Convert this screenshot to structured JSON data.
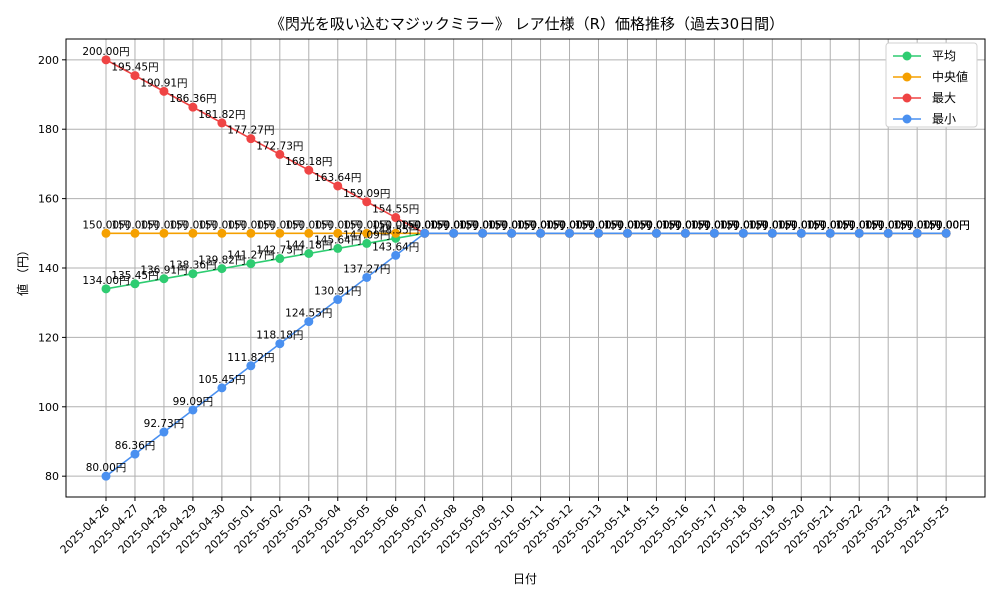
{
  "chart_data": {
    "type": "line",
    "title": "《閃光を吸い込むマジックミラー》 レア仕様（R）価格推移（過去30日間）",
    "xlabel": "日付",
    "ylabel": "値 （円）",
    "ylim": [
      74,
      206
    ],
    "yticks": [
      80,
      100,
      120,
      140,
      160,
      180,
      200
    ],
    "ytick_labels": [
      "80",
      "100",
      "120",
      "140",
      "160",
      "180",
      "200"
    ],
    "grid": true,
    "legend_position": "top-right",
    "label_suffix": "円",
    "categories": [
      "2025-04-26",
      "2025-04-27",
      "2025-04-28",
      "2025-04-29",
      "2025-04-30",
      "2025-05-01",
      "2025-05-02",
      "2025-05-03",
      "2025-05-04",
      "2025-05-05",
      "2025-05-06",
      "2025-05-07",
      "2025-05-08",
      "2025-05-09",
      "2025-05-10",
      "2025-05-11",
      "2025-05-12",
      "2025-05-13",
      "2025-05-14",
      "2025-05-15",
      "2025-05-16",
      "2025-05-17",
      "2025-05-18",
      "2025-05-19",
      "2025-05-20",
      "2025-05-21",
      "2025-05-22",
      "2025-05-23",
      "2025-05-24",
      "2025-05-25"
    ],
    "series": [
      {
        "name": "平均",
        "key": "avg",
        "color": "#2ecc71",
        "values": [
          134.0,
          135.45,
          136.91,
          138.36,
          139.82,
          141.27,
          142.73,
          144.18,
          145.64,
          147.09,
          148.55,
          150,
          150,
          150,
          150,
          150,
          150,
          150,
          150,
          150,
          150,
          150,
          150,
          150,
          150,
          150,
          150,
          150,
          150,
          150
        ],
        "labels": [
          "134.00円",
          "135.45円",
          "136.91円",
          "138.36円",
          "139.82円",
          "141.27円",
          "142.73円",
          "144.18円",
          "145.64円",
          "147.09円",
          "148.55円",
          "150.00円",
          "150.00円",
          "150.00円",
          "150.00円",
          "150.00円",
          "150.00円",
          "150.00円",
          "150.00円",
          "150.00円",
          "150.00円",
          "150.00円",
          "150.00円",
          "150.00円",
          "150.00円",
          "150.00円",
          "150.00円",
          "150.00円",
          "150.00円",
          "150.00円"
        ]
      },
      {
        "name": "中央値",
        "key": "median",
        "color": "#f5a000",
        "values": [
          150,
          150,
          150,
          150,
          150,
          150,
          150,
          150,
          150,
          150,
          150,
          150,
          150,
          150,
          150,
          150,
          150,
          150,
          150,
          150,
          150,
          150,
          150,
          150,
          150,
          150,
          150,
          150,
          150,
          150
        ],
        "labels": [
          "150.00円",
          "150.00円",
          "150.00円",
          "150.00円",
          "150.00円",
          "150.00円",
          "150.00円",
          "150.00円",
          "150.00円",
          "150.00円",
          "150.00円",
          "150.00円",
          "150.00円",
          "150.00円",
          "150.00円",
          "150.00円",
          "150.00円",
          "150.00円",
          "150.00円",
          "150.00円",
          "150.00円",
          "150.00円",
          "150.00円",
          "150.00円",
          "150.00円",
          "150.00円",
          "150.00円",
          "150.00円",
          "150.00円",
          "150.00円"
        ]
      },
      {
        "name": "最大",
        "key": "max",
        "color": "#ef4444",
        "values": [
          200.0,
          195.45,
          190.91,
          186.36,
          181.82,
          177.27,
          172.73,
          168.18,
          163.64,
          159.09,
          154.55,
          150,
          150,
          150,
          150,
          150,
          150,
          150,
          150,
          150,
          150,
          150,
          150,
          150,
          150,
          150,
          150,
          150,
          150,
          150
        ],
        "labels": [
          "200.00円",
          "195.45円",
          "190.91円",
          "186.36円",
          "181.82円",
          "177.27円",
          "172.73円",
          "168.18円",
          "163.64円",
          "159.09円",
          "154.55円",
          "150.00円",
          "150.00円",
          "150.00円",
          "150.00円",
          "150.00円",
          "150.00円",
          "150.00円",
          "150.00円",
          "150.00円",
          "150.00円",
          "150.00円",
          "150.00円",
          "150.00円",
          "150.00円",
          "150.00円",
          "150.00円",
          "150.00円",
          "150.00円",
          "150.00円"
        ]
      },
      {
        "name": "最小",
        "key": "min",
        "color": "#4a90f0",
        "values": [
          80.0,
          86.36,
          92.73,
          99.09,
          105.45,
          111.82,
          118.18,
          124.55,
          130.91,
          137.27,
          143.64,
          150,
          150,
          150,
          150,
          150,
          150,
          150,
          150,
          150,
          150,
          150,
          150,
          150,
          150,
          150,
          150,
          150,
          150,
          150
        ],
        "labels": [
          "80.00円",
          "86.36円",
          "92.73円",
          "99.09円",
          "105.45円",
          "111.82円",
          "118.18円",
          "124.55円",
          "130.91円",
          "137.27円",
          "143.64円",
          "150.00円",
          "150.00円",
          "150.00円",
          "150.00円",
          "150.00円",
          "150.00円",
          "150.00円",
          "150.00円",
          "150.00円",
          "150.00円",
          "150.00円",
          "150.00円",
          "150.00円",
          "150.00円",
          "150.00円",
          "150.00円",
          "150.00円",
          "150.00円",
          "150.00円"
        ]
      }
    ]
  }
}
